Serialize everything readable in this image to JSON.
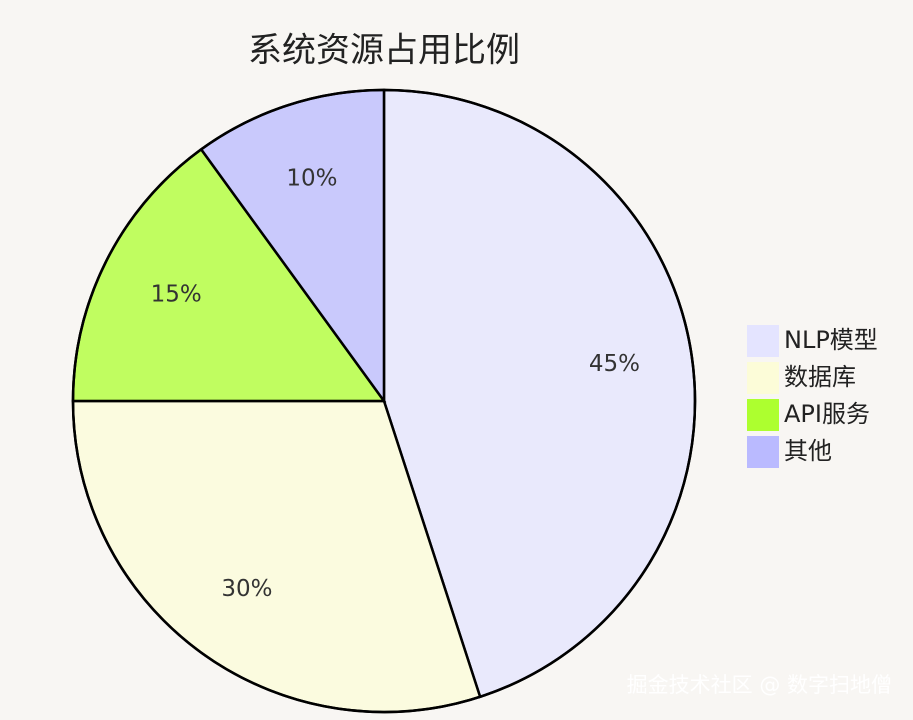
{
  "chart_data": {
    "type": "pie",
    "title": "系统资源占用比例",
    "categories": [
      "NLP模型",
      "数据库",
      "API服务",
      "其他"
    ],
    "values": [
      45,
      30,
      15,
      10
    ],
    "value_labels": [
      "45%",
      "30%",
      "15%",
      "10%"
    ],
    "colors": [
      "#E4E4FF",
      "#FCFCD8",
      "#ADFF2F",
      "#BABAFF"
    ]
  },
  "watermark": "掘金技术社区 @ 数字扫地僧"
}
